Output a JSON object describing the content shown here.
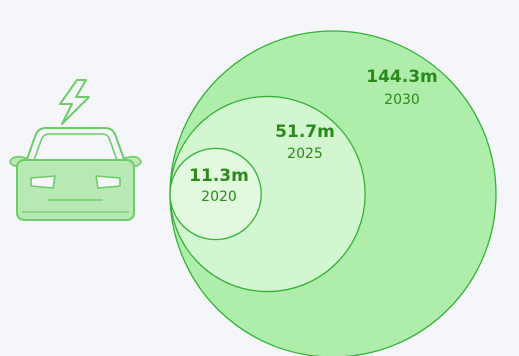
{
  "chart_data": {
    "type": "bubble",
    "series": [
      {
        "label": "2030",
        "value_text": "144.3m",
        "value": 144.3
      },
      {
        "label": "2025",
        "value_text": "51.7m",
        "value": 51.7
      },
      {
        "label": "2020",
        "value_text": "11.3m",
        "value": 11.3
      }
    ],
    "icon": "electric-car-icon",
    "colors": {
      "background": "#f5f6fa",
      "fill_largest": "#aeeeaa",
      "fill_middle": "#d2f6cf",
      "fill_smallest": "#e2f8df",
      "stroke": "#34b238",
      "text": "#2c8a1c",
      "icon_stroke": "#6ccc68",
      "icon_fill": "#b8e8b4"
    }
  }
}
